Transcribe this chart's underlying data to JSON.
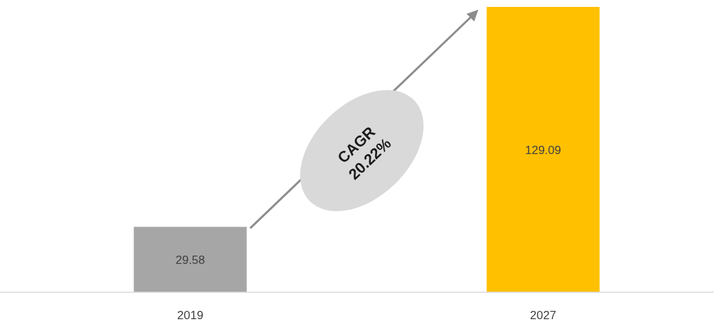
{
  "chart_data": {
    "type": "bar",
    "categories": [
      "2019",
      "2027"
    ],
    "values": [
      29.58,
      129.09
    ],
    "colors": [
      "#a6a6a6",
      "#ffc000"
    ],
    "data_labels": true,
    "annotations": [
      "CAGR 20.22%"
    ]
  }
}
